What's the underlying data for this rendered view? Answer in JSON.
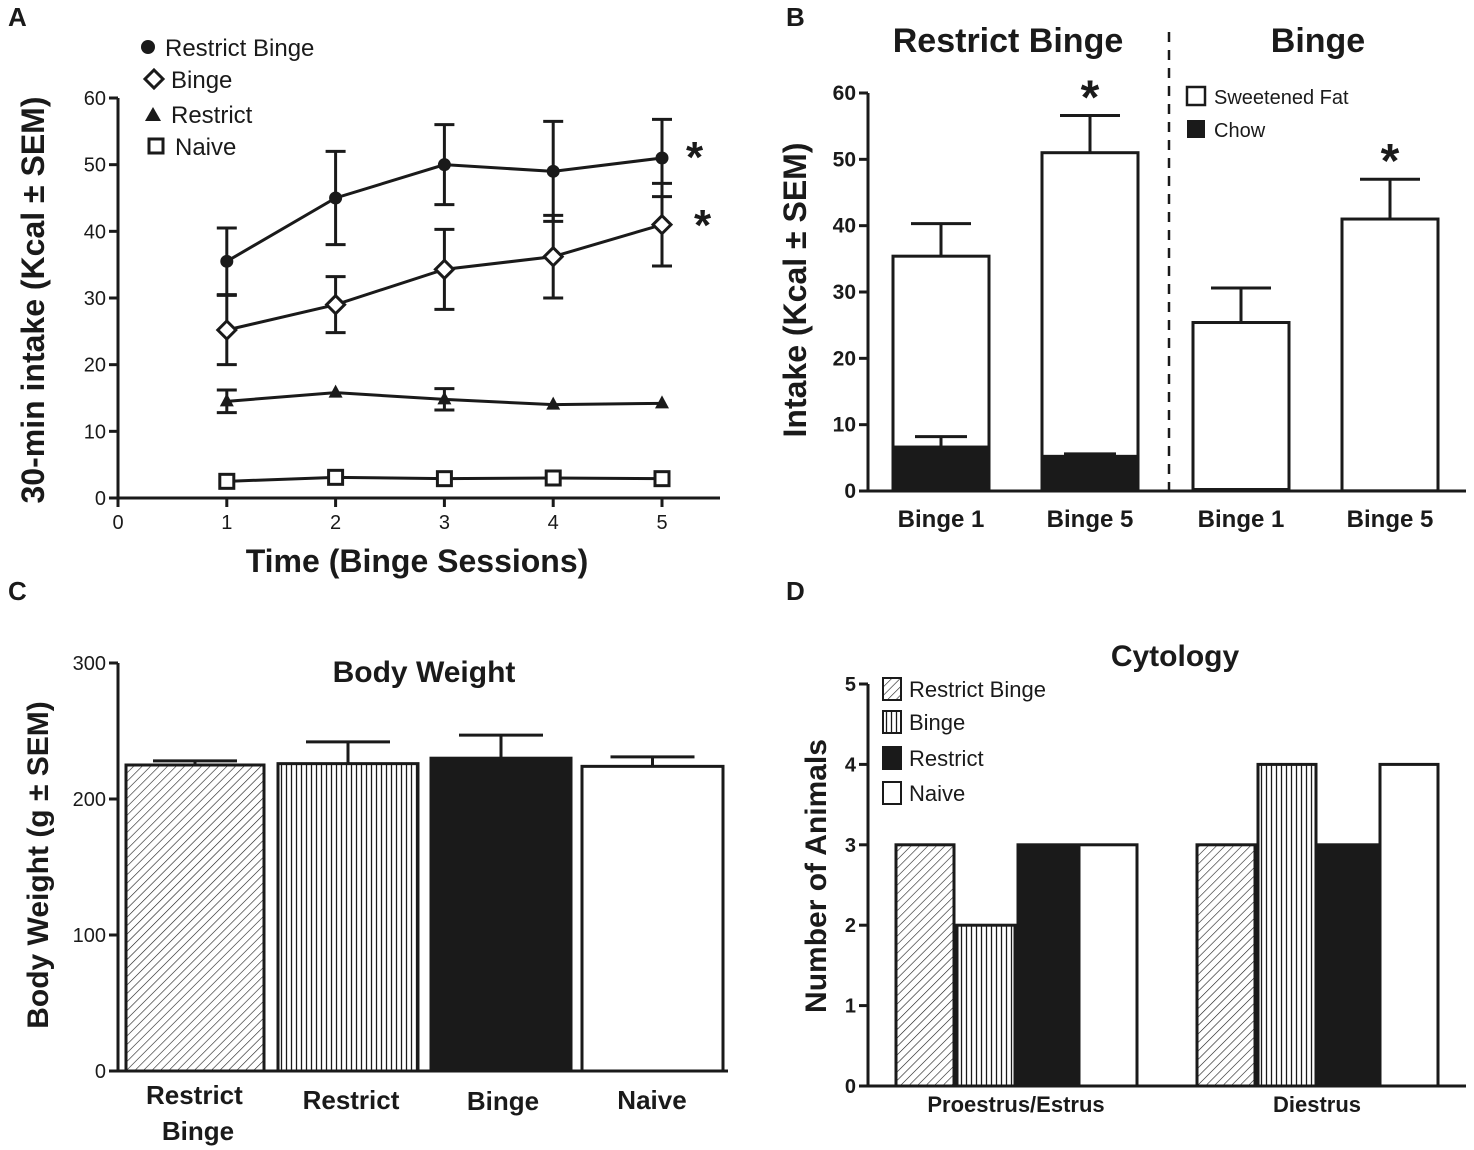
{
  "chart_data": [
    {
      "panel": "A",
      "type": "line",
      "title": "",
      "xlabel": "Time (Binge Sessions)",
      "ylabel": "30-min intake (Kcal ± SEM)",
      "xlim": [
        0,
        5.5
      ],
      "ylim": [
        0,
        60
      ],
      "xticks": [
        "0",
        "1",
        "2",
        "3",
        "4",
        "5"
      ],
      "yticks": [
        "0",
        "10",
        "20",
        "30",
        "40",
        "50",
        "60"
      ],
      "x": [
        1,
        2,
        3,
        4,
        5
      ],
      "legend_position": "top-left",
      "series": [
        {
          "name": "Restrict Binge",
          "marker": "circle",
          "values": [
            35.5,
            45,
            50,
            49,
            51
          ],
          "errors": [
            5,
            7,
            6,
            7.5,
            5.8
          ],
          "significance": "*"
        },
        {
          "name": "Binge",
          "marker": "diamond",
          "values": [
            25.2,
            29,
            34.3,
            36.2,
            41
          ],
          "errors": [
            5.2,
            4.2,
            6,
            6.2,
            6.2
          ],
          "significance": "*"
        },
        {
          "name": "Restrict",
          "marker": "triangle",
          "values": [
            14.5,
            15.8,
            14.8,
            14,
            14.2
          ],
          "errors": [
            1.7,
            0,
            1.6,
            0,
            0
          ],
          "significance": ""
        },
        {
          "name": "Naive",
          "marker": "square",
          "values": [
            2.5,
            3.1,
            2.9,
            3,
            2.9
          ],
          "errors": [
            0,
            0,
            0,
            0,
            0
          ],
          "significance": ""
        }
      ]
    },
    {
      "panel": "B",
      "type": "bar",
      "stacked": true,
      "group_titles": [
        "Restrict Binge",
        "Binge"
      ],
      "categories": [
        "Binge 1",
        "Binge 5",
        "Binge 1",
        "Binge 5"
      ],
      "ylabel": "Intake (Kcal ± SEM)",
      "ylim": [
        0,
        60
      ],
      "yticks": [
        "0",
        "10",
        "20",
        "30",
        "40",
        "50",
        "60"
      ],
      "legend_position": "top-right",
      "series": [
        {
          "name": "Sweetened Fat",
          "color": "#ffffff",
          "totals": [
            35.4,
            51,
            25.4,
            41
          ],
          "total_errors": [
            4.9,
            5.6,
            5.2,
            6
          ]
        },
        {
          "name": "Chow",
          "color": "#1a1a1a",
          "values": [
            6.7,
            5.3,
            0.3,
            0.1
          ],
          "errors": [
            1.5,
            0.3,
            0,
            0
          ]
        }
      ],
      "significance": [
        "",
        "*",
        "",
        "*"
      ]
    },
    {
      "panel": "C",
      "type": "bar",
      "title": "Body Weight",
      "categories": [
        "Restrict Binge",
        "Restrict",
        "Binge",
        "Naive"
      ],
      "values": [
        225,
        226,
        230,
        224
      ],
      "errors": [
        3,
        16,
        17,
        7
      ],
      "ylabel": "Body Weight (g ± SEM)",
      "ylim": [
        0,
        300
      ],
      "yticks": [
        "0",
        "100",
        "200",
        "300"
      ],
      "fills": [
        "diagonal-hatch",
        "vertical-hatch",
        "solid-black",
        "white"
      ]
    },
    {
      "panel": "D",
      "type": "bar",
      "title": "Cytology",
      "categories": [
        "Proestrus/Estrus",
        "Diestrus"
      ],
      "ylabel": "Number of Animals",
      "ylim": [
        0,
        5
      ],
      "yticks": [
        "0",
        "1",
        "2",
        "3",
        "4",
        "5"
      ],
      "legend_position": "top-left",
      "series": [
        {
          "name": "Restrict Binge",
          "fill": "diagonal-hatch",
          "values": [
            3,
            3
          ]
        },
        {
          "name": "Binge",
          "fill": "vertical-hatch",
          "values": [
            2,
            4
          ]
        },
        {
          "name": "Restrict",
          "fill": "solid-black",
          "values": [
            3,
            3
          ]
        },
        {
          "name": "Naive",
          "fill": "white",
          "values": [
            3,
            4
          ]
        }
      ]
    }
  ],
  "panel_labels": [
    "A",
    "B",
    "C",
    "D"
  ],
  "significance_symbol": "*",
  "colors": {
    "ink": "#1a1a1a",
    "paper": "#ffffff"
  }
}
